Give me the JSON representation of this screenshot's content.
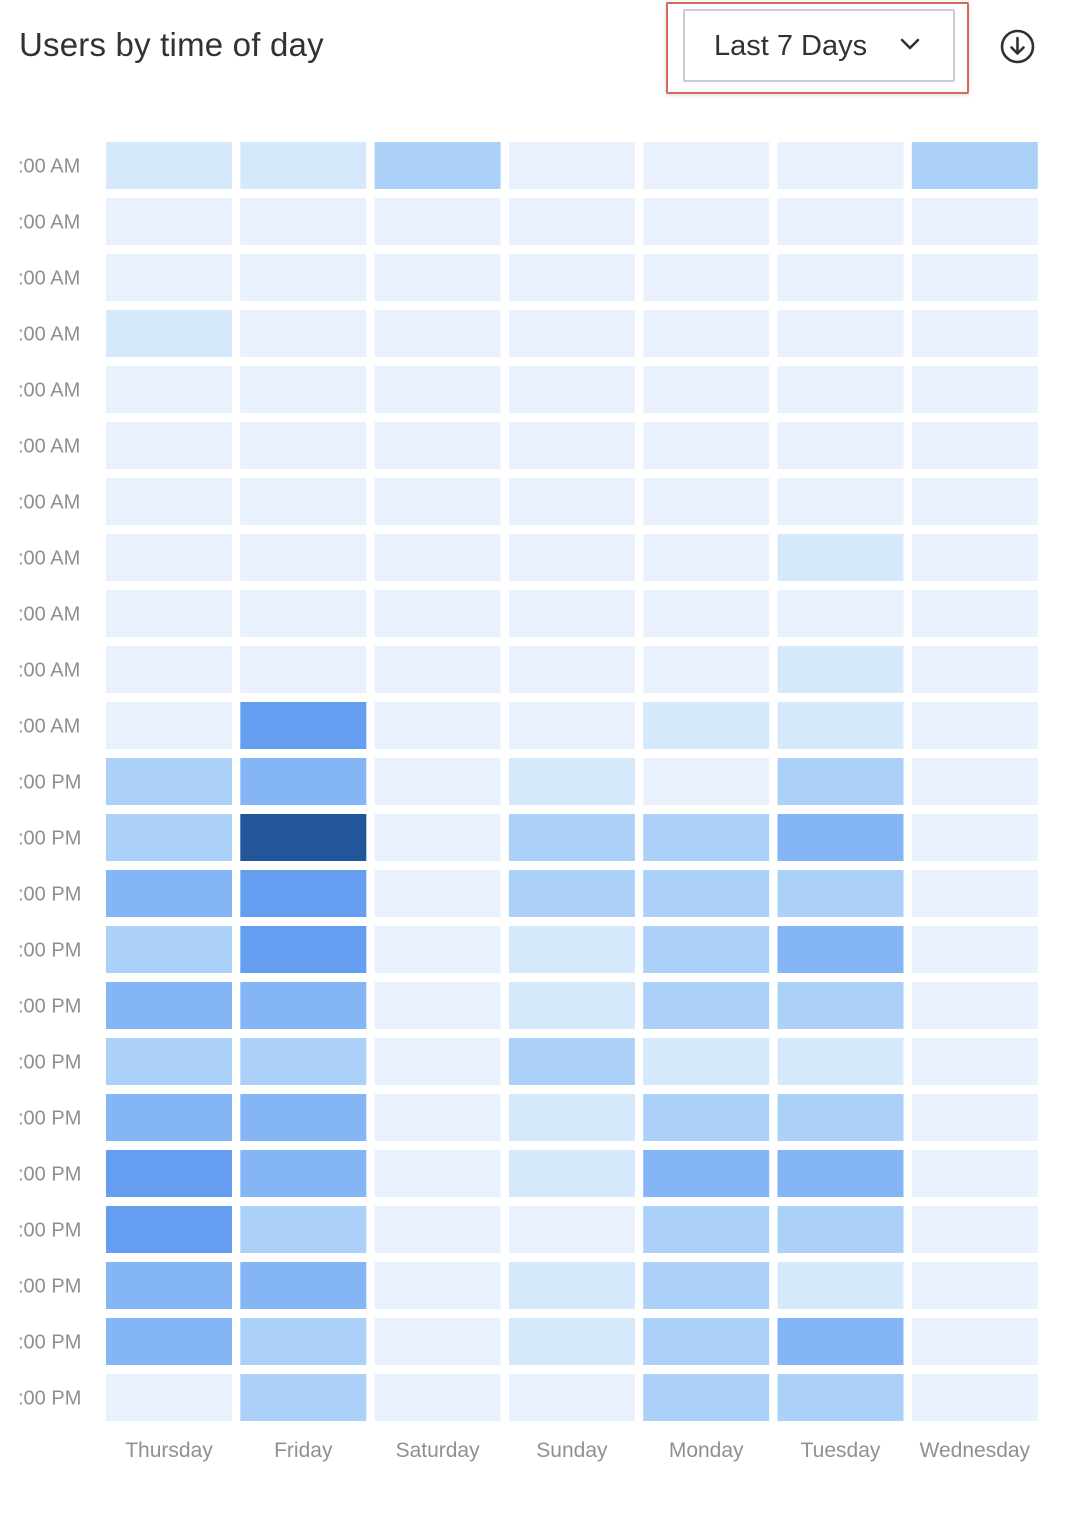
{
  "header": {
    "title": "Users by time of day",
    "range_select": {
      "label": "Last 7 Days",
      "icon": "chevron-down-icon"
    },
    "download": {
      "icon": "download-icon"
    },
    "highlight_color": "#d9685c"
  },
  "chart_data": {
    "type": "heatmap",
    "title": "Users by time of day",
    "xlabel": "",
    "ylabel": "",
    "x": [
      "Thursday",
      "Friday",
      "Saturday",
      "Sunday",
      "Monday",
      "Tuesday",
      "Wednesday"
    ],
    "y": [
      ":00 AM",
      ":00 AM",
      ":00 AM",
      ":00 AM",
      ":00 AM",
      ":00 AM",
      ":00 AM",
      ":00 AM",
      ":00 AM",
      ":00 AM",
      ":00 AM",
      ":00 PM",
      ":00 PM",
      ":00 PM",
      ":00 PM",
      ":00 PM",
      ":00 PM",
      ":00 PM",
      ":00 PM",
      ":00 PM",
      ":00 PM",
      ":00 PM",
      ":00 PM"
    ],
    "values": [
      [
        1,
        1,
        2,
        0,
        0,
        0,
        2
      ],
      [
        0,
        0,
        0,
        0,
        0,
        0,
        0
      ],
      [
        0,
        0,
        0,
        0,
        0,
        0,
        0
      ],
      [
        1,
        0,
        0,
        0,
        0,
        0,
        0
      ],
      [
        0,
        0,
        0,
        0,
        0,
        0,
        0
      ],
      [
        0,
        0,
        0,
        0,
        0,
        0,
        0
      ],
      [
        0,
        0,
        0,
        0,
        0,
        0,
        0
      ],
      [
        0,
        0,
        0,
        0,
        0,
        1,
        0
      ],
      [
        0,
        0,
        0,
        0,
        0,
        0,
        0
      ],
      [
        0,
        0,
        0,
        0,
        0,
        1,
        0
      ],
      [
        0,
        4,
        0,
        0,
        1,
        1,
        0
      ],
      [
        2,
        3,
        0,
        1,
        0,
        2,
        0
      ],
      [
        2,
        5,
        0,
        2,
        2,
        3,
        0
      ],
      [
        3,
        4,
        0,
        2,
        2,
        2,
        0
      ],
      [
        2,
        4,
        0,
        1,
        2,
        3,
        0
      ],
      [
        3,
        3,
        0,
        1,
        2,
        2,
        0
      ],
      [
        2,
        2,
        0,
        2,
        1,
        1,
        0
      ],
      [
        3,
        3,
        0,
        1,
        2,
        2,
        0
      ],
      [
        4,
        3,
        0,
        1,
        3,
        3,
        0
      ],
      [
        4,
        2,
        0,
        0,
        2,
        2,
        0
      ],
      [
        3,
        3,
        0,
        1,
        2,
        1,
        0
      ],
      [
        3,
        2,
        0,
        1,
        2,
        3,
        0
      ],
      [
        0,
        2,
        0,
        0,
        2,
        2,
        0
      ]
    ],
    "color_scale": [
      "#e8f1fd",
      "#d6e8fc",
      "#abd1f8",
      "#84b5f5",
      "#659ef0",
      "#23559a"
    ],
    "grid": false,
    "legend": "none"
  }
}
